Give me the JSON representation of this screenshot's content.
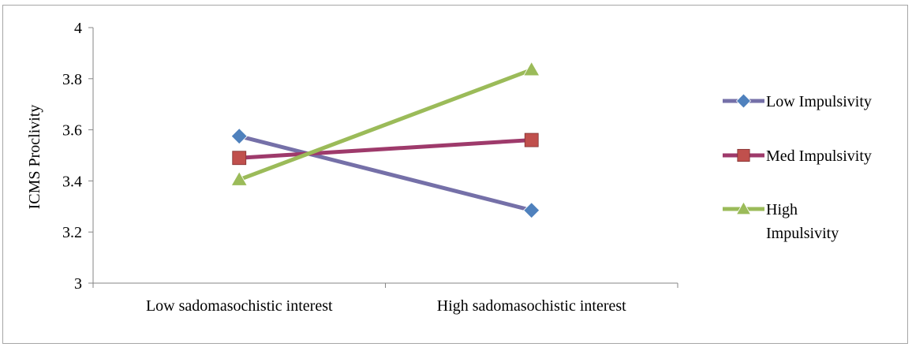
{
  "chart_data": {
    "type": "line",
    "title": "",
    "xlabel": "",
    "ylabel": "ICMS Proclivity",
    "categories": [
      "Low sadomasochistic interest",
      "High sadomasochistic interest"
    ],
    "ylim": [
      3,
      4
    ],
    "yticks": [
      3,
      3.2,
      3.4,
      3.6,
      3.8,
      4
    ],
    "ytick_labels": [
      "3",
      "3.2",
      "3.4",
      "3.6",
      "3.8",
      "4"
    ],
    "grid": false,
    "legend_position": "right",
    "series": [
      {
        "name": "Low Impulsivity",
        "name_lines": [
          "Low Impulsivity"
        ],
        "values": [
          3.575,
          3.285
        ],
        "color": "#7570a8",
        "marker_fill": "#4f81bd",
        "marker": "diamond"
      },
      {
        "name": "Med Impulsivity",
        "name_lines": [
          "Med Impulsivity"
        ],
        "values": [
          3.49,
          3.56
        ],
        "color": "#9e3a6b",
        "marker_fill": "#c0504d",
        "marker": "square"
      },
      {
        "name": "High Impulsivity",
        "name_lines": [
          "High",
          "Impulsivity"
        ],
        "values": [
          3.405,
          3.835
        ],
        "color": "#9bbb59",
        "marker_fill": "#9bbb59",
        "marker": "triangle"
      }
    ]
  }
}
